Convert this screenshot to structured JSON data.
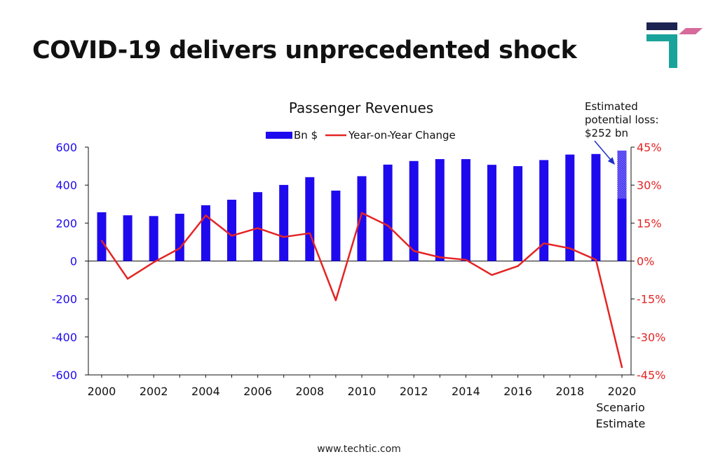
{
  "headline": "COVID-19 delivers unprecedented shock",
  "footer": "www.techtic.com",
  "colors": {
    "bar": "#1f0aee",
    "line": "#e52424",
    "left_axis": "#1f0aee",
    "right_axis": "#e52424",
    "logo_navy": "#1c2350",
    "logo_teal": "#1aa39a",
    "logo_pink": "#d66a9a"
  },
  "logo": {
    "name": "company-logo",
    "icon": "logo-mark"
  },
  "chart_data": {
    "type": "bar",
    "title": "Passenger Revenues",
    "legend": {
      "placement": "top-center",
      "entries": [
        "Bn $",
        "Year-on-Year Change"
      ]
    },
    "annotation": [
      "Estimated",
      "potential loss:",
      "$252 bn"
    ],
    "x": [
      2000,
      2001,
      2002,
      2003,
      2004,
      2005,
      2006,
      2007,
      2008,
      2009,
      2010,
      2011,
      2012,
      2013,
      2014,
      2015,
      2016,
      2017,
      2018,
      2019,
      2020
    ],
    "x_tick_labels": [
      "2000",
      "2002",
      "2004",
      "2006",
      "2008",
      "2010",
      "2012",
      "2014",
      "2016",
      "2018",
      "2020"
    ],
    "x_note": [
      "Scenario",
      "Estimate"
    ],
    "series": [
      {
        "name": "Bn $",
        "type": "bar",
        "axis": "left",
        "values": [
          257,
          241,
          237,
          249,
          294,
          323,
          363,
          401,
          442,
          371,
          447,
          508,
          527,
          537,
          537,
          507,
          500,
          532,
          561,
          564,
          330
        ],
        "estimated_loss": {
          "x": 2020,
          "from": 330,
          "to": 582
        }
      },
      {
        "name": "Year-on-Year Change",
        "type": "line",
        "axis": "right",
        "values": [
          8,
          -7,
          -0.5,
          5,
          18,
          10,
          13,
          9.5,
          11,
          -15.5,
          19,
          14,
          4,
          1.5,
          0.5,
          -5.5,
          -2,
          7,
          5,
          0.5,
          -42
        ]
      }
    ],
    "y_left": {
      "range": [
        -600,
        600
      ],
      "ticks": [
        600,
        400,
        200,
        0,
        -200,
        -400,
        -600
      ],
      "tick_labels": [
        "600",
        "400",
        "200",
        "0",
        "-200",
        "-400",
        "-600"
      ]
    },
    "y_right": {
      "range": [
        -45,
        45
      ],
      "ticks": [
        45,
        30,
        15,
        0,
        -15,
        -30,
        -45
      ],
      "tick_labels": [
        "45%",
        "30%",
        "15%",
        "0%",
        "-15%",
        "-30%",
        "-45%"
      ]
    },
    "grid": false
  }
}
